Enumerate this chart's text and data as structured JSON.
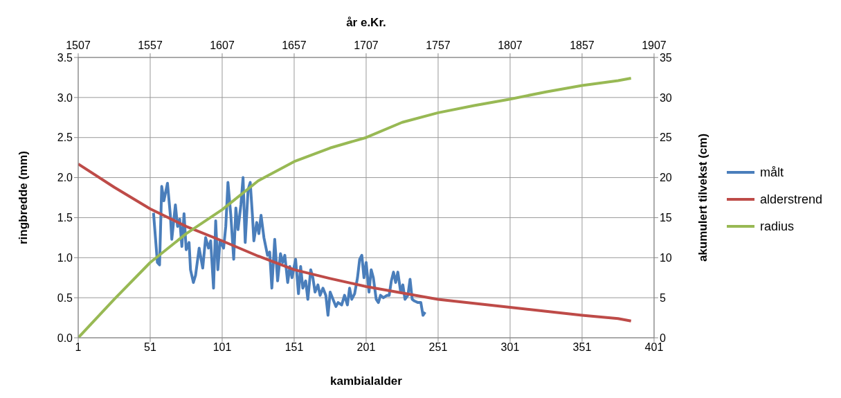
{
  "chart_data": {
    "type": "line",
    "xlabel": "kambialalder",
    "x2label": "år e.Kr.",
    "ylabel": "ringbredde (mm)",
    "y2label": "akumulert tilvekst (cm)",
    "xlim": [
      1,
      401
    ],
    "xticks": [
      1,
      51,
      101,
      151,
      201,
      251,
      301,
      351,
      401
    ],
    "x2lim": [
      1507,
      1907
    ],
    "x2ticks": [
      1507,
      1557,
      1607,
      1657,
      1707,
      1757,
      1807,
      1857,
      1907
    ],
    "ylim": [
      0,
      3.5
    ],
    "yticks": [
      {
        "value": 0,
        "label": "0.0"
      },
      0.5,
      {
        "value": 1,
        "label": "1.0"
      },
      1.5,
      {
        "value": 2,
        "label": "2.0"
      },
      2.5,
      {
        "value": 3,
        "label": "3.0"
      },
      3.5
    ],
    "y2lim": [
      0,
      35
    ],
    "y2ticks": [
      0,
      5,
      10,
      15,
      20,
      25,
      30,
      35
    ],
    "grid": true,
    "legend": "right",
    "marker": "none",
    "line_style": "solid",
    "series": [
      {
        "name": "målt",
        "color": "#4a7ebb",
        "x": [
          53.3,
          56,
          57.5,
          59,
          60.5,
          63,
          65,
          66,
          68.5,
          70,
          71.5,
          73,
          74.5,
          76,
          78,
          79,
          81,
          82.5,
          85,
          87.5,
          89.5,
          91.5,
          93,
          95,
          96.5,
          98,
          99.5,
          102,
          103.5,
          105,
          107,
          109,
          110.5,
          112,
          114,
          115.5,
          117,
          119,
          120.5,
          122,
          123,
          125,
          126.5,
          128,
          130,
          132.5,
          134,
          135.5,
          137.5,
          139.5,
          141.5,
          143,
          144.5,
          146.5,
          148,
          149.5,
          152,
          154,
          155.5,
          157,
          159,
          160.5,
          162.5,
          164,
          165.5,
          167.5,
          169,
          171,
          173,
          174.5,
          176,
          178,
          180,
          181.5,
          184,
          186,
          188,
          189.5,
          191,
          193,
          195,
          196.5,
          198,
          199.5,
          201,
          203,
          204.5,
          206,
          208,
          209.5,
          211,
          213,
          215.5,
          217,
          218.5,
          220,
          221.5,
          223,
          225,
          226.5,
          228,
          230,
          231.5,
          233,
          234.5,
          237,
          239,
          240.5,
          242
        ],
        "values": [
          1.56,
          0.94,
          0.91,
          1.89,
          1.71,
          1.93,
          1.53,
          1.23,
          1.66,
          1.39,
          1.48,
          1.14,
          1.55,
          1.1,
          1.19,
          0.85,
          0.69,
          0.78,
          1.12,
          0.87,
          1.25,
          1.12,
          1.21,
          0.62,
          1.46,
          0.85,
          1.21,
          1.12,
          1.39,
          1.94,
          1.53,
          0.98,
          1.62,
          1.35,
          1.66,
          2.0,
          1.19,
          1.85,
          1.94,
          1.53,
          1.21,
          1.44,
          1.3,
          1.53,
          1.25,
          1.03,
          1.07,
          0.62,
          1.23,
          0.71,
          1.05,
          0.94,
          1.03,
          0.69,
          0.89,
          0.75,
          0.98,
          0.55,
          0.89,
          0.62,
          0.71,
          0.48,
          0.85,
          0.75,
          0.57,
          0.66,
          0.53,
          0.62,
          0.53,
          0.28,
          0.57,
          0.48,
          0.39,
          0.44,
          0.41,
          0.53,
          0.41,
          0.62,
          0.48,
          0.55,
          0.75,
          0.98,
          1.03,
          0.75,
          0.94,
          0.57,
          0.85,
          0.75,
          0.48,
          0.44,
          0.53,
          0.5,
          0.53,
          0.53,
          0.71,
          0.82,
          0.69,
          0.82,
          0.57,
          0.66,
          0.48,
          0.53,
          0.73,
          0.48,
          0.46,
          0.44,
          0.44,
          0.28,
          0.32
        ]
      },
      {
        "name": "alderstrend",
        "color": "#be4b48",
        "x": [
          1,
          26,
          51,
          76,
          101,
          126,
          151,
          176,
          201,
          226,
          251,
          276,
          301,
          326,
          351,
          376,
          385
        ],
        "values": [
          2.17,
          1.88,
          1.61,
          1.39,
          1.21,
          1.02,
          0.85,
          0.74,
          0.64,
          0.56,
          0.48,
          0.43,
          0.38,
          0.33,
          0.28,
          0.24,
          0.21
        ]
      },
      {
        "name": "radius",
        "color": "#98b954",
        "axis": "y2",
        "x": [
          1,
          26,
          51,
          76,
          101,
          126,
          151,
          176,
          201,
          226,
          251,
          276,
          301,
          326,
          351,
          376,
          385
        ],
        "values": [
          0,
          4.8,
          9.4,
          13.0,
          16.0,
          19.6,
          22.0,
          23.7,
          25.0,
          26.9,
          28.1,
          29.0,
          29.8,
          30.7,
          31.5,
          32.1,
          32.4
        ]
      }
    ]
  }
}
